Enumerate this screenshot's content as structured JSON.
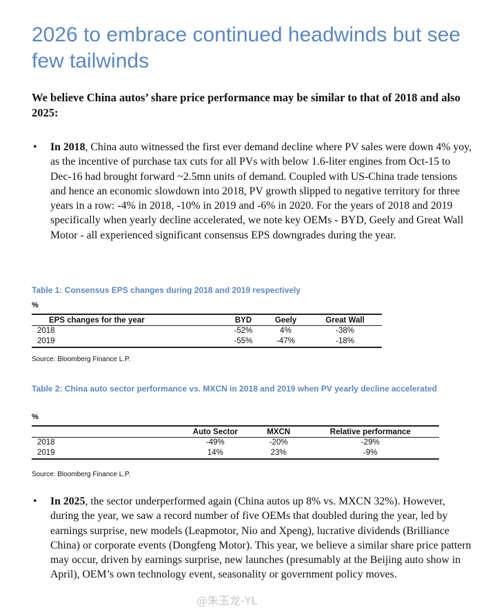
{
  "title": "2026 to embrace continued headwinds but see few tailwinds",
  "lead": "We believe China autos’ share price performance may be similar to that of 2018 and also 2025:",
  "bullets": [
    {
      "bold": "In 2018",
      "text": ", China auto witnessed the first ever demand decline where PV sales were down 4% yoy, as the incentive of purchase tax cuts for all PVs with below 1.6-liter engines from Oct-15 to Dec-16 had brought forward ~2.5mn units of demand. Coupled with US-China trade tensions and hence an economic slowdown into 2018, PV growth slipped to negative territory for three years in a row: -4% in 2018, -10% in 2019 and -6% in 2020. For the years of 2018 and 2019 specifically when yearly decline accelerated, we note key OEMs - BYD, Geely and Great Wall Motor - all experienced significant consensus EPS downgrades during the year."
    },
    {
      "bold": "In 2025",
      "text": ", the sector underperformed again (China autos up 8% vs. MXCN 32%). However, during the year, we saw a record number of five OEMs that doubled during the year, led by earnings surprise, new models (Leapmotor, Nio and Xpeng), lucrative dividends (Brilliance China) or corporate events (Dongfeng Motor). This year, we believe a similar share price pattern may occur, driven by earnings surprise, new launches (presumably at the Beijing auto show in April), OEM’s own technology event, seasonality or government policy moves."
    }
  ],
  "table1": {
    "caption": "Table 1: Consensus EPS changes during 2018 and 2019 respectively",
    "unit": "%",
    "headers": [
      "EPS changes for the year",
      "BYD",
      "Geely",
      "Great Wall"
    ],
    "rows": [
      [
        "2018",
        "-52%",
        "4%",
        "-38%"
      ],
      [
        "2019",
        "-55%",
        "-47%",
        "-18%"
      ]
    ],
    "source": "Source: Bloomberg Finance L.P."
  },
  "table2": {
    "caption": "Table 2: China auto sector performance vs. MXCN in 2018 and 2019 when PV yearly decline accelerated",
    "unit": "%",
    "headers": [
      "",
      "Auto Sector",
      "MXCN",
      "Relative performance"
    ],
    "rows": [
      [
        "2018",
        "-49%",
        "-20%",
        "-29%"
      ],
      [
        "2019",
        "14%",
        "23%",
        "-9%"
      ]
    ],
    "source": "Source: Bloomberg Finance L.P."
  },
  "watermark": "@朱玉龙-YL"
}
